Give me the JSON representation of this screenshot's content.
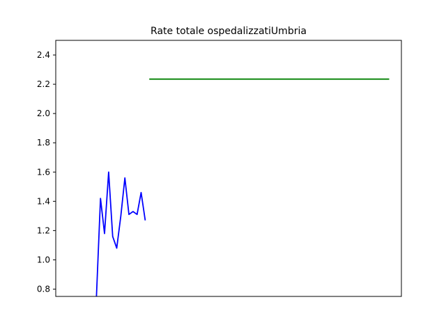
{
  "chart_data": {
    "type": "line",
    "title": "Rate totale ospedalizzatiUmbria",
    "xlabel": "",
    "ylabel": "",
    "x_ticks_shown": false,
    "grid": false,
    "legend": "none",
    "xlim": [
      0,
      85
    ],
    "ylim": [
      0.75,
      2.5
    ],
    "yticks": [
      0.8,
      1.0,
      1.2,
      1.4,
      1.6,
      1.8,
      2.0,
      2.2,
      2.4
    ],
    "ytick_labels": [
      "0.8",
      "1.0",
      "1.2",
      "1.4",
      "1.6",
      "1.8",
      "2.0",
      "2.2",
      "2.4"
    ],
    "series": [
      {
        "color": "#0000ff",
        "points": [
          [
            10,
            0.75
          ],
          [
            11,
            1.42
          ],
          [
            12,
            1.18
          ],
          [
            13,
            1.6
          ],
          [
            14,
            1.16
          ],
          [
            15,
            1.08
          ],
          [
            16,
            1.3
          ],
          [
            17,
            1.56
          ],
          [
            18,
            1.31
          ],
          [
            19,
            1.33
          ],
          [
            20,
            1.31
          ],
          [
            21,
            1.46
          ],
          [
            22,
            1.27
          ]
        ]
      },
      {
        "color": "#008000",
        "points": [
          [
            23,
            2.235
          ],
          [
            82,
            2.235
          ]
        ]
      }
    ]
  }
}
